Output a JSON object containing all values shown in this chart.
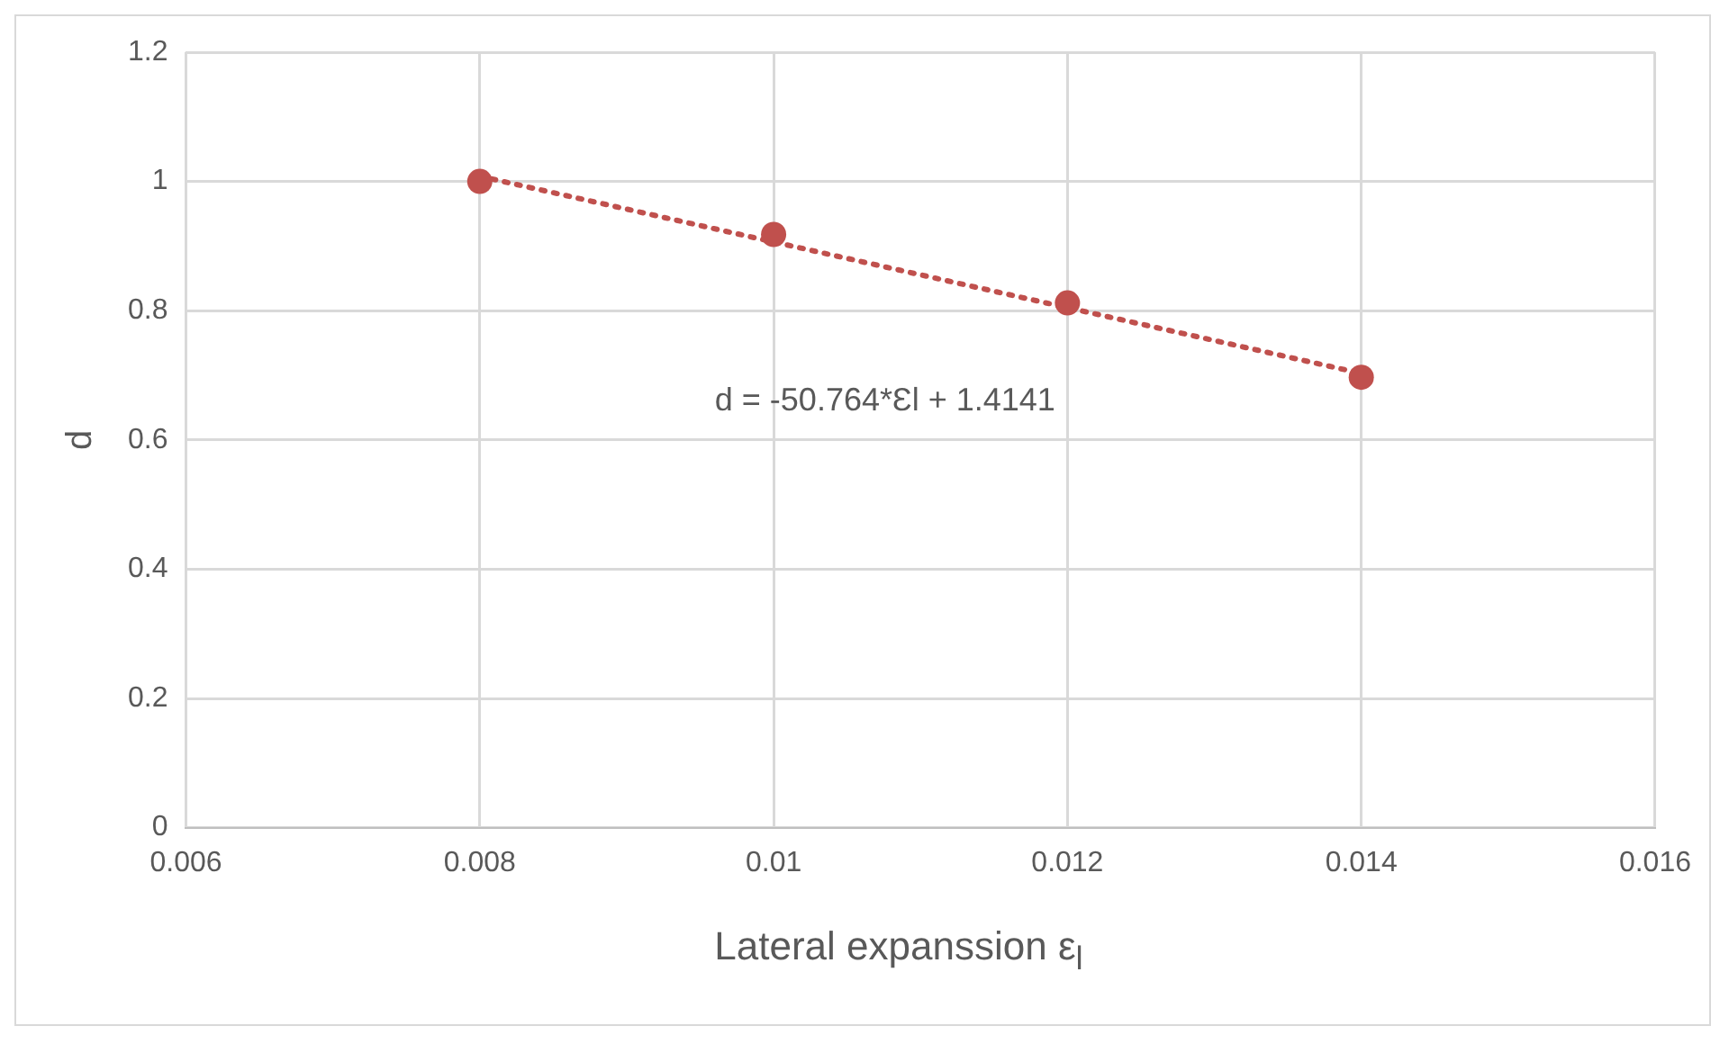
{
  "chart_data": {
    "type": "scatter",
    "xlabel": "Lateral expanssion ε$_{l}$",
    "ylabel": "d",
    "x": [
      0.008,
      0.01,
      0.012,
      0.014
    ],
    "series": [
      {
        "color": "#c0504d",
        "values": [
          1.0,
          0.918,
          0.812,
          0.697
        ],
        "marker": "circle"
      },
      {
        "type": "line",
        "x": [
          0.008,
          0.014
        ],
        "values": [
          1.008,
          0.703
        ],
        "color": "#c0504d",
        "line_style": "dotted",
        "marker": "none"
      }
    ],
    "xlim": [
      0.006,
      0.016
    ],
    "xticks": [
      0.006,
      0.008,
      0.01,
      0.012,
      0.014,
      0.016
    ],
    "ylim": [
      0,
      1.2
    ],
    "yticks": [
      0,
      0.2,
      0.4,
      0.6,
      0.8,
      1,
      1.2
    ],
    "grid": true,
    "legend": false,
    "annotations": [
      "d = -50.764*Ɛl + 1.4141"
    ]
  }
}
